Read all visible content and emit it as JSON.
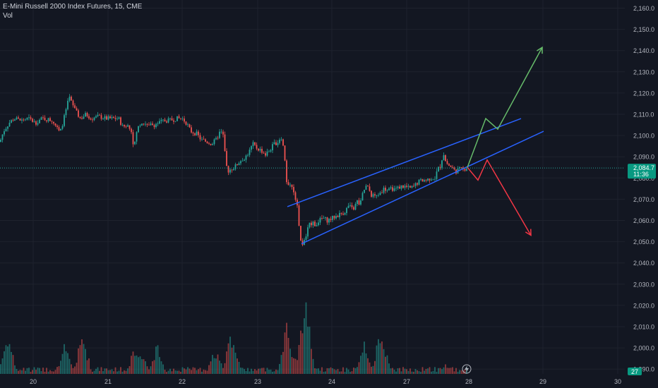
{
  "header": {
    "title": "E-Mini Russell 2000 Index Futures, 15, CME",
    "sub": "Vol"
  },
  "colors": {
    "background": "#131722",
    "grid": "#1e222d",
    "text": "#b2b5be",
    "up": "#26a69a",
    "down": "#ef5350",
    "channel": "#2962ff",
    "bull_arrow": "#66bb6a",
    "bear_arrow": "#f23645",
    "price_label_bg": "#089981"
  },
  "chart_data": {
    "type": "candlestick",
    "title": "E-Mini Russell 2000 Index Futures, 15, CME",
    "y_ticks": [
      "2,160.0",
      "2,150.0",
      "2,140.0",
      "2,130.0",
      "2,120.0",
      "2,110.0",
      "2,100.0",
      "2,090.0",
      "2,080.0",
      "2,070.0",
      "2,060.0",
      "2,050.0",
      "2,040.0",
      "2,030.0",
      "2,020.0",
      "2,010.0",
      "2,000.0",
      "1,990.0"
    ],
    "ylim": [
      1987,
      2163
    ],
    "x_ticks": [
      "20",
      "21",
      "22",
      "23",
      "24",
      "27",
      "28",
      "29",
      "30"
    ],
    "last_price": "2,084.7",
    "countdown": "11:36",
    "volume_label": "27",
    "price_path": [
      [
        0,
        2097
      ],
      [
        5,
        2102
      ],
      [
        13,
        2106
      ],
      [
        20,
        2108
      ],
      [
        30,
        2107
      ],
      [
        40,
        2108
      ],
      [
        50,
        2106
      ],
      [
        60,
        2108
      ],
      [
        75,
        2107
      ],
      [
        85,
        2101
      ],
      [
        92,
        2110
      ],
      [
        98,
        2118
      ],
      [
        106,
        2112
      ],
      [
        114,
        2108
      ],
      [
        122,
        2110
      ],
      [
        130,
        2108
      ],
      [
        140,
        2109
      ],
      [
        150,
        2108
      ],
      [
        160,
        2108
      ],
      [
        168,
        2108
      ],
      [
        174,
        2104
      ],
      [
        180,
        2105
      ],
      [
        186,
        2102
      ],
      [
        190,
        2094
      ],
      [
        194,
        2103
      ],
      [
        200,
        2106
      ],
      [
        210,
        2105
      ],
      [
        218,
        2105
      ],
      [
        225,
        2106
      ],
      [
        232,
        2107
      ],
      [
        240,
        2107
      ],
      [
        250,
        2108
      ],
      [
        258,
        2108
      ],
      [
        264,
        2106
      ],
      [
        270,
        2102
      ],
      [
        278,
        2101
      ],
      [
        285,
        2098
      ],
      [
        293,
        2097
      ],
      [
        300,
        2096
      ],
      [
        306,
        2098
      ],
      [
        312,
        2102
      ],
      [
        316,
        2100
      ],
      [
        319,
        2090
      ],
      [
        322,
        2083
      ],
      [
        326,
        2084
      ],
      [
        332,
        2085
      ],
      [
        340,
        2088
      ],
      [
        348,
        2090
      ],
      [
        354,
        2093
      ],
      [
        358,
        2096
      ],
      [
        364,
        2094
      ],
      [
        370,
        2093
      ],
      [
        376,
        2091
      ],
      [
        382,
        2093
      ],
      [
        388,
        2096
      ],
      [
        394,
        2097
      ],
      [
        398,
        2100
      ],
      [
        403,
        2092
      ],
      [
        405,
        2080
      ],
      [
        409,
        2075
      ],
      [
        413,
        2077
      ],
      [
        417,
        2072
      ],
      [
        421,
        2068
      ],
      [
        424,
        2056
      ],
      [
        427,
        2048
      ],
      [
        431,
        2050
      ],
      [
        436,
        2056
      ],
      [
        440,
        2059
      ],
      [
        446,
        2058
      ],
      [
        452,
        2060
      ],
      [
        458,
        2061
      ],
      [
        464,
        2060
      ],
      [
        470,
        2061
      ],
      [
        476,
        2062
      ],
      [
        482,
        2063
      ],
      [
        488,
        2064
      ],
      [
        494,
        2067
      ],
      [
        500,
        2065
      ],
      [
        506,
        2069
      ],
      [
        510,
        2067
      ],
      [
        514,
        2073
      ],
      [
        518,
        2076
      ],
      [
        522,
        2075
      ],
      [
        526,
        2072
      ],
      [
        532,
        2071
      ],
      [
        538,
        2073
      ],
      [
        544,
        2075
      ],
      [
        550,
        2074
      ],
      [
        556,
        2075
      ],
      [
        562,
        2075
      ],
      [
        568,
        2076
      ],
      [
        574,
        2076
      ],
      [
        580,
        2075
      ],
      [
        586,
        2076
      ],
      [
        592,
        2078
      ],
      [
        598,
        2079
      ],
      [
        604,
        2079
      ],
      [
        610,
        2080
      ],
      [
        616,
        2080
      ],
      [
        620,
        2084
      ],
      [
        624,
        2086
      ],
      [
        628,
        2092
      ],
      [
        631,
        2088
      ],
      [
        635,
        2086
      ],
      [
        640,
        2085
      ],
      [
        645,
        2083
      ],
      [
        650,
        2084
      ],
      [
        656,
        2084
      ],
      [
        662,
        2085
      ]
    ],
    "volume_spikes": [
      {
        "x": 11,
        "v": 0.46
      },
      {
        "x": 92,
        "v": 0.34
      },
      {
        "x": 117,
        "v": 0.46
      },
      {
        "x": 192,
        "v": 0.34
      },
      {
        "x": 199,
        "v": 0.29
      },
      {
        "x": 222,
        "v": 0.33
      },
      {
        "x": 305,
        "v": 0.29
      },
      {
        "x": 328,
        "v": 0.5
      },
      {
        "x": 406,
        "v": 0.52
      },
      {
        "x": 410,
        "v": 0.35
      },
      {
        "x": 433,
        "v": 0.93
      },
      {
        "x": 427,
        "v": 0.4
      },
      {
        "x": 516,
        "v": 0.4
      },
      {
        "x": 540,
        "v": 0.55
      },
      {
        "x": 630,
        "v": 0.12
      }
    ],
    "annotations": {
      "upper_channel": [
        [
          407,
          2066.5
        ],
        [
          738,
          2108
        ]
      ],
      "lower_channel": [
        [
          427,
          2049
        ],
        [
          770,
          2102
        ]
      ],
      "bull_path": [
        [
          662,
          2085
        ],
        [
          688,
          2108
        ],
        [
          705,
          2103
        ],
        [
          768,
          2141.5
        ]
      ],
      "bear_path": [
        [
          662,
          2085
        ],
        [
          677,
          2079
        ],
        [
          690,
          2088.5
        ],
        [
          752,
          2053
        ]
      ]
    }
  }
}
